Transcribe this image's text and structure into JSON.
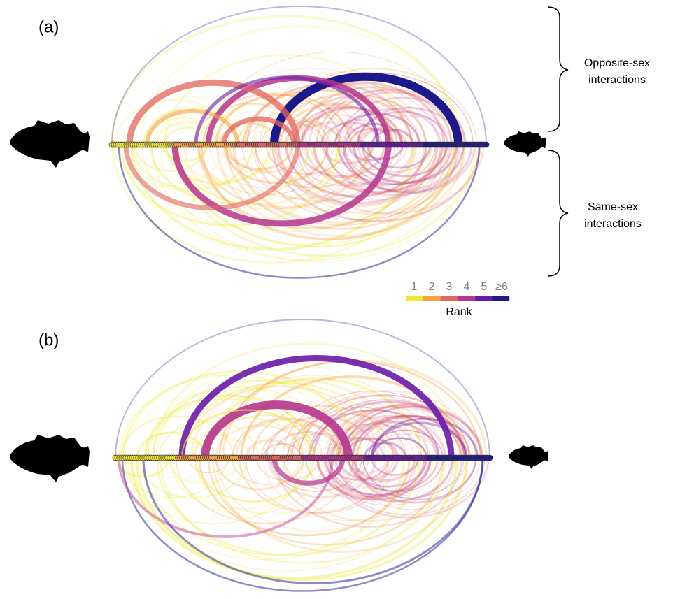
{
  "panels": [
    {
      "label": "(a)"
    },
    {
      "label": "(b)"
    }
  ],
  "brackets": [
    {
      "lines": [
        "Opposite-sex",
        "interactions"
      ]
    },
    {
      "lines": [
        "Same-sex",
        "interactions"
      ]
    }
  ],
  "legend": {
    "title": "Rank",
    "labels": [
      "1",
      "2",
      "3",
      "4",
      "5",
      "≥6"
    ],
    "colors": [
      "#eee835",
      "#f5a041",
      "#e0665f",
      "#b5358f",
      "#6a1aa8",
      "#1c1a8a"
    ]
  }
}
